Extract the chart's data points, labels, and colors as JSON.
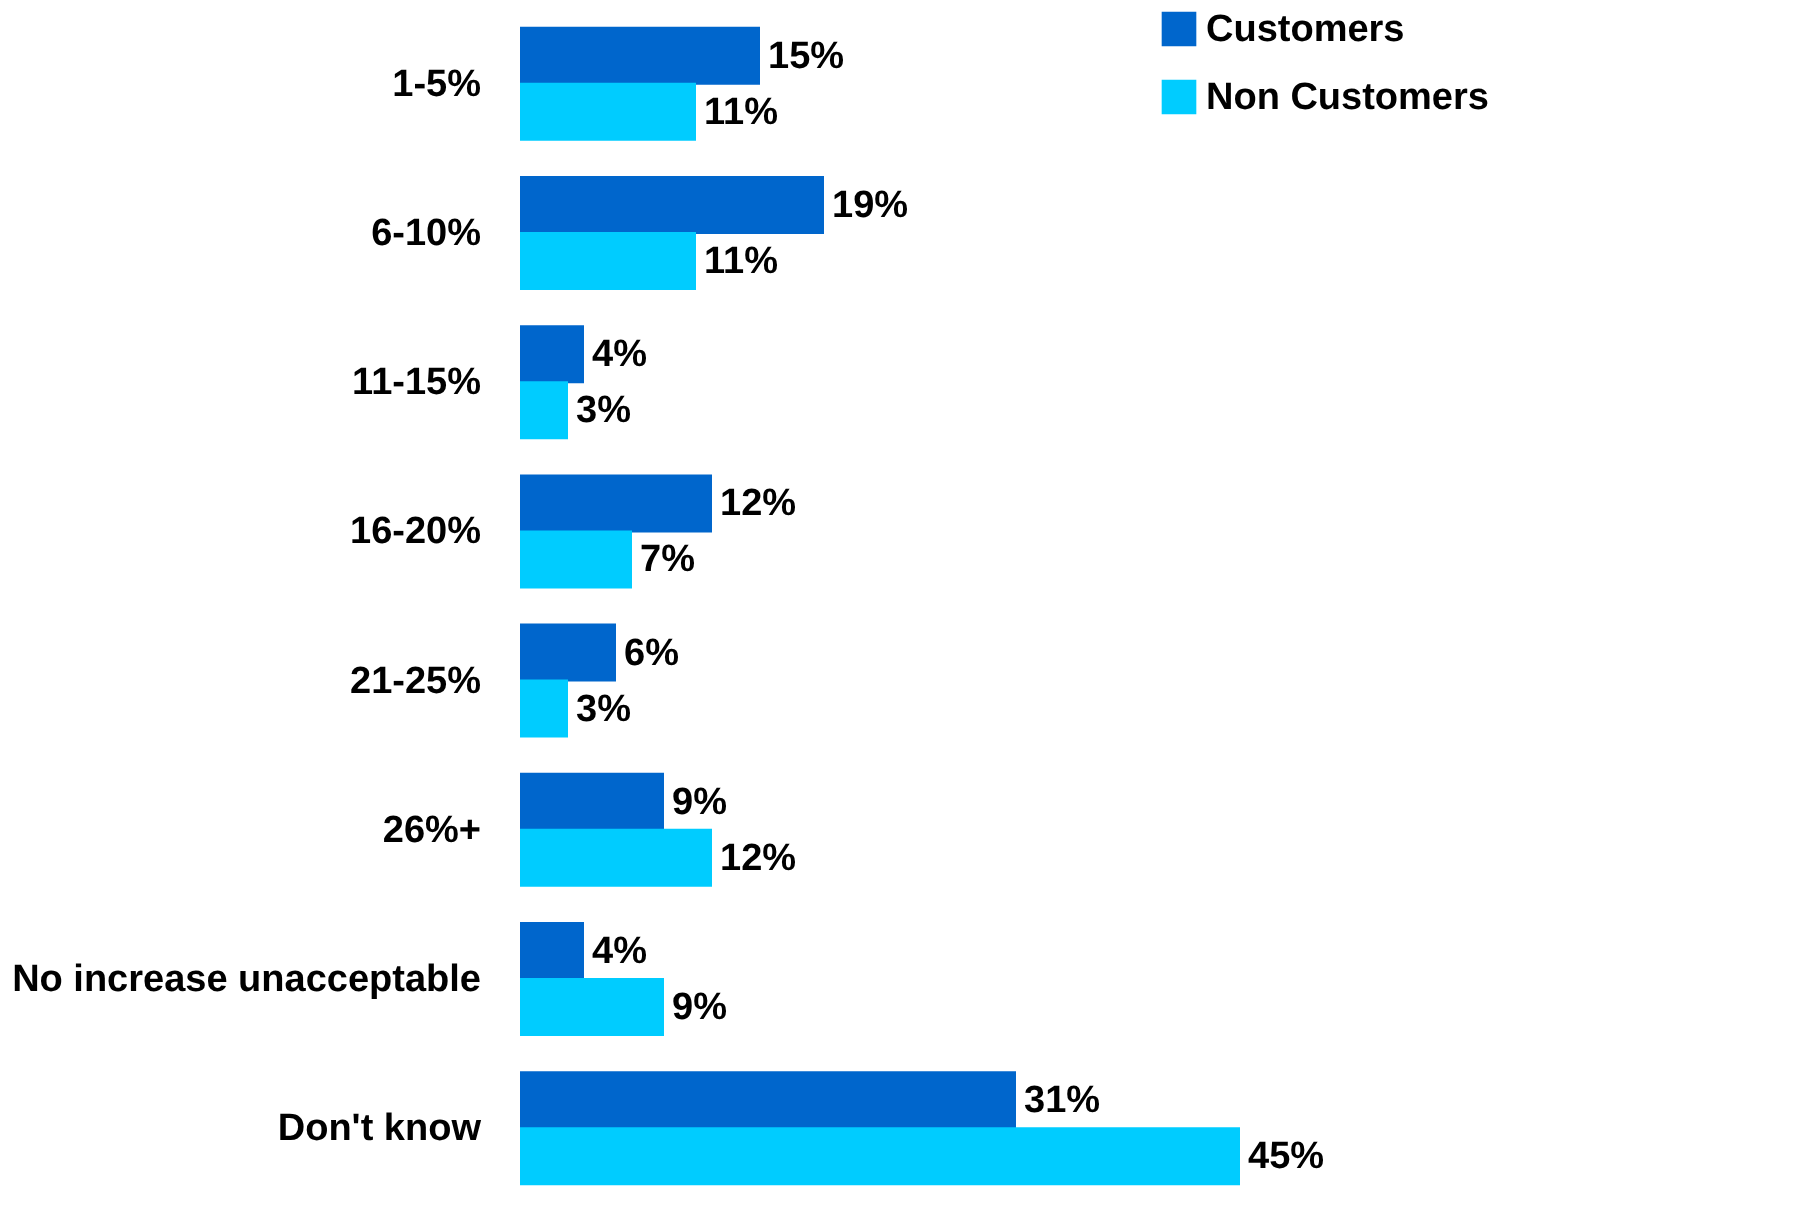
{
  "chart_data": {
    "type": "bar",
    "orientation": "horizontal",
    "categories": [
      "1-5%",
      "6-10%",
      "11-15%",
      "16-20%",
      "21-25%",
      "26%+",
      "No increase unacceptable",
      "Don't know"
    ],
    "series": [
      {
        "name": "Customers",
        "color": "#0066cc",
        "values": [
          15,
          19,
          4,
          12,
          6,
          9,
          4,
          31
        ],
        "value_labels": [
          "15%",
          "19%",
          "4%",
          "12%",
          "6%",
          "9%",
          "4%",
          "31%"
        ]
      },
      {
        "name": "Non Customers",
        "color": "#00ccff",
        "values": [
          11,
          11,
          3,
          7,
          3,
          12,
          9,
          45
        ],
        "value_labels": [
          "11%",
          "11%",
          "3%",
          "7%",
          "3%",
          "12%",
          "9%",
          "45%"
        ]
      }
    ],
    "legend": "right",
    "grid": false
  }
}
